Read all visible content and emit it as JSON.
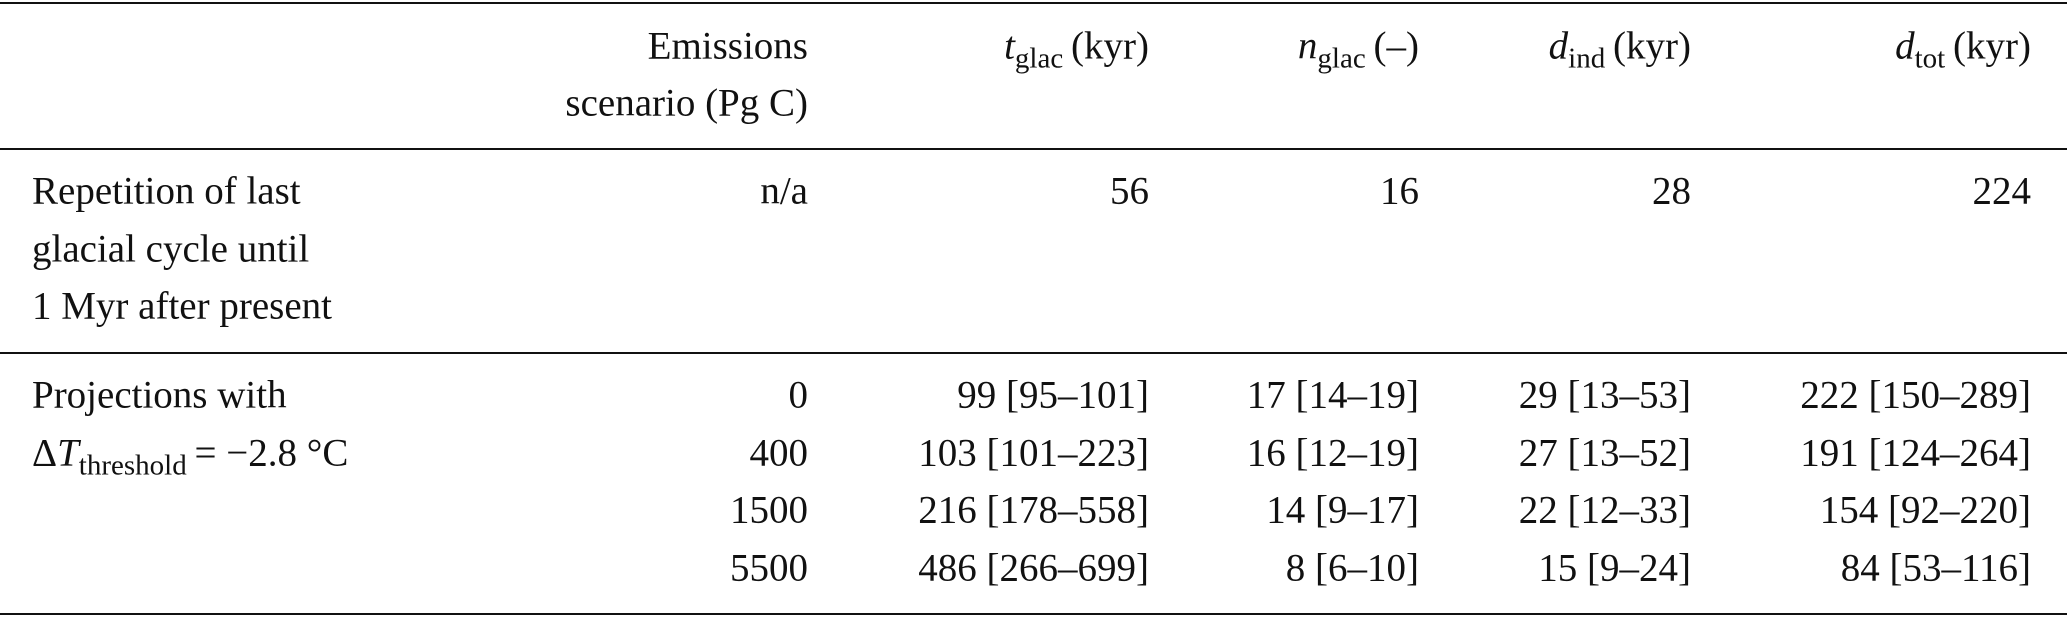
{
  "table": {
    "columns": [
      {
        "lines": [
          "Emissions",
          "scenario (Pg C)"
        ]
      },
      {
        "symbol": "t",
        "sub": "glac",
        "unit": "(kyr)"
      },
      {
        "symbol": "n",
        "sub": "glac",
        "unit": "(–)"
      },
      {
        "symbol": "d",
        "sub": "ind",
        "unit": "(kyr)"
      },
      {
        "symbol": "d",
        "sub": "tot",
        "unit": "(kyr)"
      }
    ],
    "groups": [
      {
        "label": [
          "Repetition of last",
          "glacial cycle until",
          "1 Myr after present"
        ],
        "rows": [
          [
            "n/a",
            "56",
            "16",
            "28",
            "224"
          ]
        ]
      },
      {
        "label": [
          "Projections with",
          {
            "prefix": "Δ",
            "symbol": "T",
            "sub": "threshold",
            "rest": "= −2.8 °C"
          }
        ],
        "rows": [
          [
            "0",
            "99 [95–101]",
            "17 [14–19]",
            "29 [13–53]",
            "222 [150–289]"
          ],
          [
            "400",
            "103 [101–223]",
            "16 [12–19]",
            "27 [13–52]",
            "191 [124–264]"
          ],
          [
            "1500",
            "216 [178–558]",
            "14 [9–17]",
            "22 [12–33]",
            "154 [92–220]"
          ],
          [
            "5500",
            "486 [266–699]",
            "8 [6–10]",
            "15 [9–24]",
            "84 [53–116]"
          ]
        ]
      }
    ]
  }
}
